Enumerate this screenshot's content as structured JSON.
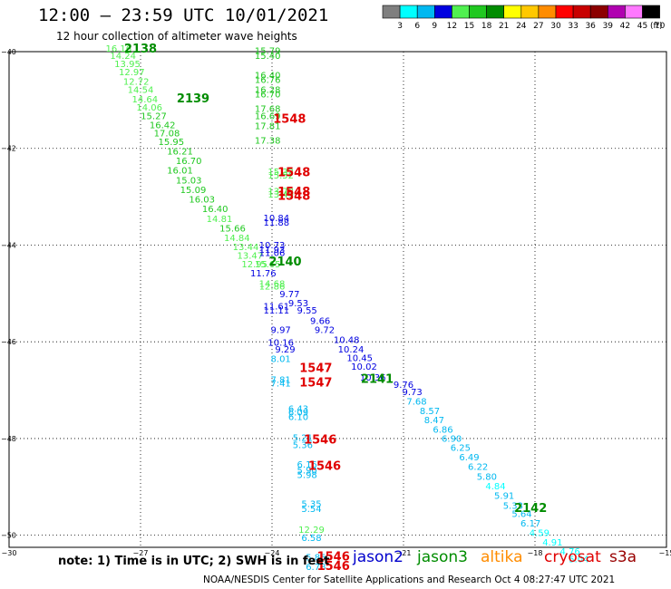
{
  "header": {
    "title": "12:00 – 23:59 UTC 10/01/2021",
    "subtitle": "12 hour collection of altimeter wave heights"
  },
  "colorbar": {
    "unit": "(ft)",
    "bins": [
      {
        "label": "3",
        "color": "#7f7f7f"
      },
      {
        "label": "6",
        "color": "#00ffff"
      },
      {
        "label": "9",
        "color": "#00b8f0"
      },
      {
        "label": "12",
        "color": "#0000e0"
      },
      {
        "label": "15",
        "color": "#50f050"
      },
      {
        "label": "18",
        "color": "#20c820"
      },
      {
        "label": "21",
        "color": "#008c00"
      },
      {
        "label": "24",
        "color": "#ffff00"
      },
      {
        "label": "27",
        "color": "#ffc800"
      },
      {
        "label": "30",
        "color": "#ff8c00"
      },
      {
        "label": "33",
        "color": "#ff0000"
      },
      {
        "label": "36",
        "color": "#c80000"
      },
      {
        "label": "39",
        "color": "#8c0000"
      },
      {
        "label": "42",
        "color": "#b000b0"
      },
      {
        "label": "45",
        "color": "#ff78ff"
      },
      {
        "label": "70",
        "color": "#000000"
      }
    ]
  },
  "footer": {
    "note": "note: 1) Time is in UTC; 2) SWH is in feet",
    "credit": "NOAA/NESDIS Center for Satellite Applications and Research    Oct  4 08:27:47 UTC 2021",
    "satellites": [
      {
        "name": "jason2",
        "color": "#0000cc"
      },
      {
        "name": "jason3",
        "color": "#008c00"
      },
      {
        "name": "altika",
        "color": "#ff8c00"
      },
      {
        "name": "cryosat",
        "color": "#e00000"
      },
      {
        "name": "s3a",
        "color": "#990000"
      }
    ]
  },
  "chart_data": {
    "type": "scatter",
    "title": "12 hour collection of altimeter wave heights",
    "xlabel": "",
    "ylabel": "",
    "xlim": [
      -30,
      -15
    ],
    "ylim": [
      -50.25,
      -40
    ],
    "x_ticks": [
      -30,
      -27,
      -24,
      -21,
      -18,
      -15
    ],
    "x_tick_labels": [
      "−30",
      "−27",
      "−24",
      "−21",
      "−18",
      "−15"
    ],
    "y_ticks": [
      -40,
      -42,
      -44,
      -46,
      -48,
      -50
    ],
    "y_tick_labels": [
      "−40",
      "−42",
      "−44",
      "−46",
      "−48",
      "−50"
    ],
    "grid": "dotted",
    "series": [
      {
        "name": "swh",
        "points": [
          {
            "x": -27.5,
            "y": -40.0,
            "label": "16.16",
            "color": "#50f050"
          },
          {
            "x": -27.4,
            "y": -40.15,
            "label": "14.24",
            "color": "#50f050"
          },
          {
            "x": -27.3,
            "y": -40.32,
            "label": "13.95",
            "color": "#50f050"
          },
          {
            "x": -27.2,
            "y": -40.49,
            "label": "12.97",
            "color": "#50f050"
          },
          {
            "x": -27.1,
            "y": -40.68,
            "label": "12.72",
            "color": "#50f050"
          },
          {
            "x": -27.0,
            "y": -40.85,
            "label": "14.54",
            "color": "#50f050"
          },
          {
            "x": -26.9,
            "y": -41.05,
            "label": "14.64",
            "color": "#50f050"
          },
          {
            "x": -26.8,
            "y": -41.22,
            "label": "14.06",
            "color": "#50f050"
          },
          {
            "x": -26.7,
            "y": -41.4,
            "label": "15.27",
            "color": "#20c820"
          },
          {
            "x": -26.5,
            "y": -41.58,
            "label": "16.42",
            "color": "#20c820"
          },
          {
            "x": -26.4,
            "y": -41.75,
            "label": "17.08",
            "color": "#20c820"
          },
          {
            "x": -26.3,
            "y": -41.93,
            "label": "15.95",
            "color": "#20c820"
          },
          {
            "x": -26.1,
            "y": -42.13,
            "label": "16.21",
            "color": "#20c820"
          },
          {
            "x": -25.9,
            "y": -42.32,
            "label": "16.70",
            "color": "#20c820"
          },
          {
            "x": -26.1,
            "y": -42.52,
            "label": "16.01",
            "color": "#20c820"
          },
          {
            "x": -25.9,
            "y": -42.73,
            "label": "15.03",
            "color": "#20c820"
          },
          {
            "x": -25.8,
            "y": -42.92,
            "label": "15.09",
            "color": "#20c820"
          },
          {
            "x": -25.6,
            "y": -43.12,
            "label": "16.03",
            "color": "#20c820"
          },
          {
            "x": -25.3,
            "y": -43.32,
            "label": "16.40",
            "color": "#20c820"
          },
          {
            "x": -25.2,
            "y": -43.52,
            "label": "14.81",
            "color": "#50f050"
          },
          {
            "x": -24.9,
            "y": -43.72,
            "label": "15.66",
            "color": "#20c820"
          },
          {
            "x": -24.8,
            "y": -43.92,
            "label": "14.84",
            "color": "#50f050"
          },
          {
            "x": -24.6,
            "y": -44.1,
            "label": "13.44",
            "color": "#50f050"
          },
          {
            "x": -24.5,
            "y": -44.28,
            "label": "13.47",
            "color": "#50f050"
          },
          {
            "x": -24.4,
            "y": -44.46,
            "label": "12.95",
            "color": "#50f050"
          },
          {
            "x": -24.1,
            "y": -44.46,
            "label": "15.65",
            "color": "#50f050"
          },
          {
            "x": -24.0,
            "y": -44.07,
            "label": "10.73",
            "color": "#0000e0"
          },
          {
            "x": -24.0,
            "y": -44.16,
            "label": "11.93",
            "color": "#0000e0"
          },
          {
            "x": -24.0,
            "y": -44.23,
            "label": "11.06",
            "color": "#0000e0"
          },
          {
            "x": -24.2,
            "y": -44.65,
            "label": "11.76",
            "color": "#0000e0"
          },
          {
            "x": -24.0,
            "y": -44.86,
            "label": "14.68",
            "color": "#50f050"
          },
          {
            "x": -24.0,
            "y": -44.92,
            "label": "12.86",
            "color": "#50f050"
          },
          {
            "x": -23.6,
            "y": -45.08,
            "label": "9.77",
            "color": "#0000e0"
          },
          {
            "x": -23.4,
            "y": -45.27,
            "label": "9.53",
            "color": "#0000e0"
          },
          {
            "x": -23.9,
            "y": -45.33,
            "label": "11.61",
            "color": "#0000e0"
          },
          {
            "x": -23.9,
            "y": -45.42,
            "label": "11.11",
            "color": "#0000e0"
          },
          {
            "x": -23.2,
            "y": -45.42,
            "label": "9.55",
            "color": "#0000e0"
          },
          {
            "x": -22.9,
            "y": -45.63,
            "label": "9.66",
            "color": "#0000e0"
          },
          {
            "x": -23.8,
            "y": -45.82,
            "label": "9.97",
            "color": "#0000e0"
          },
          {
            "x": -22.8,
            "y": -45.82,
            "label": "9.72",
            "color": "#0000e0"
          },
          {
            "x": -22.3,
            "y": -46.02,
            "label": "10.48",
            "color": "#0000e0"
          },
          {
            "x": -23.8,
            "y": -46.08,
            "label": "10.16",
            "color": "#0000e0"
          },
          {
            "x": -23.7,
            "y": -46.22,
            "label": "9.29",
            "color": "#0000e0"
          },
          {
            "x": -22.2,
            "y": -46.22,
            "label": "10.24",
            "color": "#0000e0"
          },
          {
            "x": -22.0,
            "y": -46.4,
            "label": "10.45",
            "color": "#0000e0"
          },
          {
            "x": -21.9,
            "y": -46.58,
            "label": "10.02",
            "color": "#0000e0"
          },
          {
            "x": -21.7,
            "y": -46.8,
            "label": "10.36",
            "color": "#0000e0"
          },
          {
            "x": -21.0,
            "y": -46.95,
            "label": "9.76",
            "color": "#0000e0"
          },
          {
            "x": -20.8,
            "y": -47.1,
            "label": "9.73",
            "color": "#0000e0"
          },
          {
            "x": -20.7,
            "y": -47.3,
            "label": "7.68",
            "color": "#00b8f0"
          },
          {
            "x": -20.4,
            "y": -47.5,
            "label": "8.57",
            "color": "#00b8f0"
          },
          {
            "x": -20.3,
            "y": -47.68,
            "label": "8.47",
            "color": "#00b8f0"
          },
          {
            "x": -20.1,
            "y": -47.88,
            "label": "6.86",
            "color": "#00b8f0"
          },
          {
            "x": -19.9,
            "y": -48.07,
            "label": "6.90",
            "color": "#00b8f0"
          },
          {
            "x": -19.7,
            "y": -48.25,
            "label": "6.25",
            "color": "#00b8f0"
          },
          {
            "x": -19.5,
            "y": -48.45,
            "label": "6.49",
            "color": "#00b8f0"
          },
          {
            "x": -19.3,
            "y": -48.65,
            "label": "6.22",
            "color": "#00b8f0"
          },
          {
            "x": -19.1,
            "y": -48.85,
            "label": "5.80",
            "color": "#00b8f0"
          },
          {
            "x": -18.9,
            "y": -49.05,
            "label": "4.84",
            "color": "#00ffff"
          },
          {
            "x": -18.7,
            "y": -49.25,
            "label": "5.91",
            "color": "#00b8f0"
          },
          {
            "x": -18.5,
            "y": -49.45,
            "label": "5.33",
            "color": "#00b8f0"
          },
          {
            "x": -18.3,
            "y": -49.62,
            "label": "5.64",
            "color": "#00b8f0"
          },
          {
            "x": -18.1,
            "y": -49.82,
            "label": "6.17",
            "color": "#00b8f0"
          },
          {
            "x": -17.9,
            "y": -50.02,
            "label": "4.59",
            "color": "#00ffff"
          },
          {
            "x": -17.6,
            "y": -50.21,
            "label": "4.91",
            "color": "#00ffff"
          },
          {
            "x": -17.2,
            "y": -50.4,
            "label": "4.76",
            "color": "#00ffff"
          },
          {
            "x": -17.0,
            "y": -50.56,
            "label": "5.04",
            "color": "#00ffff"
          },
          {
            "x": -24.1,
            "y": -40.05,
            "label": "15.79",
            "color": "#20c820"
          },
          {
            "x": -24.1,
            "y": -40.15,
            "label": "15.40",
            "color": "#20c820"
          },
          {
            "x": -24.1,
            "y": -40.55,
            "label": "16.40",
            "color": "#20c820"
          },
          {
            "x": -24.1,
            "y": -40.65,
            "label": "16.76",
            "color": "#20c820"
          },
          {
            "x": -24.1,
            "y": -40.85,
            "label": "16.28",
            "color": "#20c820"
          },
          {
            "x": -24.1,
            "y": -40.95,
            "label": "16.70",
            "color": "#20c820"
          },
          {
            "x": -24.1,
            "y": -41.25,
            "label": "17.68",
            "color": "#20c820"
          },
          {
            "x": -24.1,
            "y": -41.4,
            "label": "16.69",
            "color": "#20c820"
          },
          {
            "x": -24.1,
            "y": -41.6,
            "label": "17.81",
            "color": "#20c820"
          },
          {
            "x": -24.1,
            "y": -41.9,
            "label": "17.38",
            "color": "#20c820"
          },
          {
            "x": -23.8,
            "y": -42.55,
            "label": "15.32",
            "color": "#50f050"
          },
          {
            "x": -23.8,
            "y": -42.62,
            "label": "15.52",
            "color": "#50f050"
          },
          {
            "x": -23.8,
            "y": -42.95,
            "label": "13.78",
            "color": "#50f050"
          },
          {
            "x": -23.8,
            "y": -43.02,
            "label": "13.49",
            "color": "#50f050"
          },
          {
            "x": -23.9,
            "y": -43.5,
            "label": "10.84",
            "color": "#0000e0"
          },
          {
            "x": -23.9,
            "y": -43.6,
            "label": "11.88",
            "color": "#0000e0"
          },
          {
            "x": -23.8,
            "y": -46.42,
            "label": "8.01",
            "color": "#00b8f0"
          },
          {
            "x": -23.8,
            "y": -46.85,
            "label": "7.81",
            "color": "#00b8f0"
          },
          {
            "x": -23.8,
            "y": -46.92,
            "label": "7.41",
            "color": "#00b8f0"
          },
          {
            "x": -23.4,
            "y": -47.45,
            "label": "6.43",
            "color": "#00b8f0"
          },
          {
            "x": -23.4,
            "y": -47.52,
            "label": "6.09",
            "color": "#00b8f0"
          },
          {
            "x": -23.4,
            "y": -47.62,
            "label": "6.10",
            "color": "#00b8f0"
          },
          {
            "x": -23.3,
            "y": -48.05,
            "label": "5.21",
            "color": "#00b8f0"
          },
          {
            "x": -23.3,
            "y": -48.2,
            "label": "5.36",
            "color": "#00b8f0"
          },
          {
            "x": -23.2,
            "y": -48.6,
            "label": "6.16",
            "color": "#00b8f0"
          },
          {
            "x": -23.2,
            "y": -48.72,
            "label": "5.90",
            "color": "#00b8f0"
          },
          {
            "x": -23.2,
            "y": -48.82,
            "label": "5.98",
            "color": "#00b8f0"
          },
          {
            "x": -23.1,
            "y": -49.42,
            "label": "5.35",
            "color": "#00b8f0"
          },
          {
            "x": -23.1,
            "y": -49.52,
            "label": "5.54",
            "color": "#00b8f0"
          },
          {
            "x": -23.1,
            "y": -49.95,
            "label": "12.29",
            "color": "#50f050"
          },
          {
            "x": -23.1,
            "y": -50.12,
            "label": "6.58",
            "color": "#00b8f0"
          },
          {
            "x": -23.0,
            "y": -50.52,
            "label": "5.85",
            "color": "#00b8f0"
          },
          {
            "x": -23.0,
            "y": -50.72,
            "label": "6.78",
            "color": "#00b8f0"
          }
        ]
      }
    ],
    "annotations": [
      {
        "x": -27.0,
        "y": -40.02,
        "text": "2138",
        "color": "#008c00"
      },
      {
        "x": -25.8,
        "y": -41.05,
        "text": "2139",
        "color": "#008c00"
      },
      {
        "x": -23.7,
        "y": -44.42,
        "text": "2140",
        "color": "#008c00"
      },
      {
        "x": -21.6,
        "y": -46.85,
        "text": "2141",
        "color": "#008c00"
      },
      {
        "x": -18.1,
        "y": -49.52,
        "text": "2142",
        "color": "#008c00"
      },
      {
        "x": -23.6,
        "y": -41.47,
        "text": "1548",
        "color": "#e00000"
      },
      {
        "x": -23.5,
        "y": -42.58,
        "text": "1548",
        "color": "#e00000"
      },
      {
        "x": -23.5,
        "y": -42.98,
        "text": "1548",
        "color": "#e00000"
      },
      {
        "x": -23.5,
        "y": -43.06,
        "text": "1548",
        "color": "#e00000"
      },
      {
        "x": -23.0,
        "y": -46.62,
        "text": "1547",
        "color": "#e00000"
      },
      {
        "x": -23.0,
        "y": -46.92,
        "text": "1547",
        "color": "#e00000"
      },
      {
        "x": -22.9,
        "y": -48.1,
        "text": "1546",
        "color": "#e00000"
      },
      {
        "x": -22.8,
        "y": -48.65,
        "text": "1546",
        "color": "#e00000"
      },
      {
        "x": -22.6,
        "y": -50.52,
        "text": "1546",
        "color": "#e00000"
      },
      {
        "x": -22.6,
        "y": -50.72,
        "text": "1546",
        "color": "#e00000"
      }
    ]
  }
}
